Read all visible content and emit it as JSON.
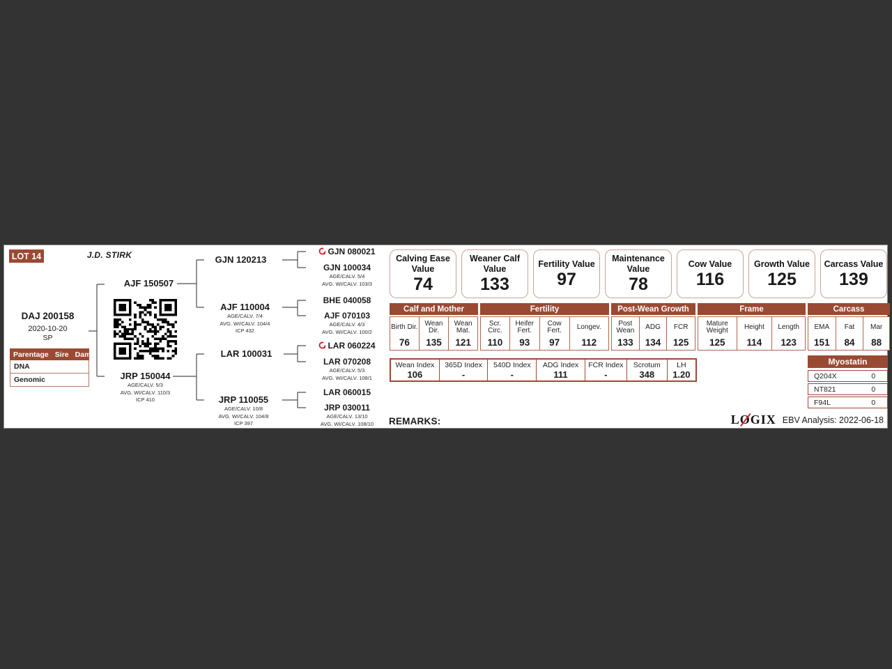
{
  "lot": {
    "badge": "LOT 14",
    "owner": "J.D. STIRK"
  },
  "animal": {
    "id": "DAJ 200158",
    "birth_date": "2020-10-20",
    "status": "SP"
  },
  "parentage": {
    "title": "Parentage",
    "col_sire": "Sire",
    "col_dam": "Dam",
    "rows": [
      {
        "label": "DNA"
      },
      {
        "label": "Genomic"
      }
    ]
  },
  "pedigree": {
    "sire": {
      "id": "AJF 150507"
    },
    "dam": {
      "id": "JRP 150044",
      "stats": [
        "AGE/CALV. 5/3",
        "AVG. WI/CALV. 110/3",
        "ICP 410"
      ]
    },
    "gen2": [
      {
        "id": "GJN 120213"
      },
      {
        "id": "AJF 110004",
        "stats": [
          "AGE/CALV. 7/4",
          "AVG. WI/CALV. 104/4",
          "ICP 432"
        ]
      },
      {
        "id": "LAR 100031"
      },
      {
        "id": "JRP 110055",
        "stats": [
          "AGE/CALV. 10/8",
          "AVG. WI/CALV. 104/8",
          "ICP 397"
        ]
      }
    ],
    "gen3": [
      {
        "id": "GJN 080021",
        "flagged": true
      },
      {
        "id": "GJN 100034",
        "stats": [
          "AGE/CALV. 5/4",
          "AVG. WI/CALV. 103/3"
        ]
      },
      {
        "id": "BHE 040058"
      },
      {
        "id": "AJF 070103",
        "stats": [
          "AGE/CALV. 4/3",
          "AVG. WI/CALV. 100/2"
        ]
      },
      {
        "id": "LAR 060224",
        "flagged": true
      },
      {
        "id": "LAR 070208",
        "stats": [
          "AGE/CALV. 5/3",
          "AVG. WI/CALV. 108/1"
        ]
      },
      {
        "id": "LAR 060015"
      },
      {
        "id": "JRP 030011",
        "stats": [
          "AGE/CALV. 13/10",
          "AVG. WI/CALV. 108/10"
        ]
      }
    ]
  },
  "values": [
    {
      "label": "Calving Ease Value",
      "value": "74"
    },
    {
      "label": "Weaner Calf Value",
      "value": "133"
    },
    {
      "label": "Fertility Value",
      "value": "97"
    },
    {
      "label": "Maintenance Value",
      "value": "78"
    },
    {
      "label": "Cow Value",
      "value": "116"
    },
    {
      "label": "Growth Value",
      "value": "125"
    },
    {
      "label": "Carcass Value",
      "value": "139"
    }
  ],
  "ebv_groups": [
    {
      "title": "Calf and Mother",
      "cells": [
        {
          "label": "Birth Dir.",
          "value": "76"
        },
        {
          "label": "Wean Dir.",
          "value": "135"
        },
        {
          "label": "Wean Mat.",
          "value": "121"
        }
      ]
    },
    {
      "title": "Fertility",
      "cells": [
        {
          "label": "Scr. Circ.",
          "value": "110"
        },
        {
          "label": "Heifer Fert.",
          "value": "93"
        },
        {
          "label": "Cow Fert.",
          "value": "97"
        },
        {
          "label": "Longev.",
          "value": "112"
        }
      ]
    },
    {
      "title": "Post-Wean Growth",
      "cells": [
        {
          "label": "Post Wean",
          "value": "133"
        },
        {
          "label": "ADG",
          "value": "134"
        },
        {
          "label": "FCR",
          "value": "125"
        }
      ]
    },
    {
      "title": "Frame",
      "cells": [
        {
          "label": "Mature Weight",
          "value": "125"
        },
        {
          "label": "Height",
          "value": "114"
        },
        {
          "label": "Length",
          "value": "123"
        }
      ]
    },
    {
      "title": "Carcass",
      "cells": [
        {
          "label": "EMA",
          "value": "151"
        },
        {
          "label": "Fat",
          "value": "84"
        },
        {
          "label": "Mar",
          "value": "88"
        }
      ]
    }
  ],
  "indices": [
    {
      "label": "Wean Index",
      "value": "106"
    },
    {
      "label": "365D Index",
      "value": "-"
    },
    {
      "label": "540D Index",
      "value": "-"
    },
    {
      "label": "ADG Index",
      "value": "111"
    },
    {
      "label": "FCR Index",
      "value": "-"
    },
    {
      "label": "Scrotum",
      "value": "348"
    },
    {
      "label": "LH",
      "value": "1.20"
    }
  ],
  "myostatin": {
    "title": "Myostatin",
    "rows": [
      {
        "gene": "Q204X",
        "value": "0"
      },
      {
        "gene": "NT821",
        "value": "0"
      },
      {
        "gene": "F94L",
        "value": "0"
      }
    ]
  },
  "footer": {
    "remarks_label": "REMARKS:",
    "logo": {
      "l": "L",
      "o": "O",
      "gix": "GIX"
    },
    "analysis_label": "EBV Analysis: 2022-06-18"
  },
  "colors": {
    "brown": "#9a4a33",
    "box_border": "#c9a494",
    "accent_red": "#cc2127",
    "background": "#333333"
  }
}
